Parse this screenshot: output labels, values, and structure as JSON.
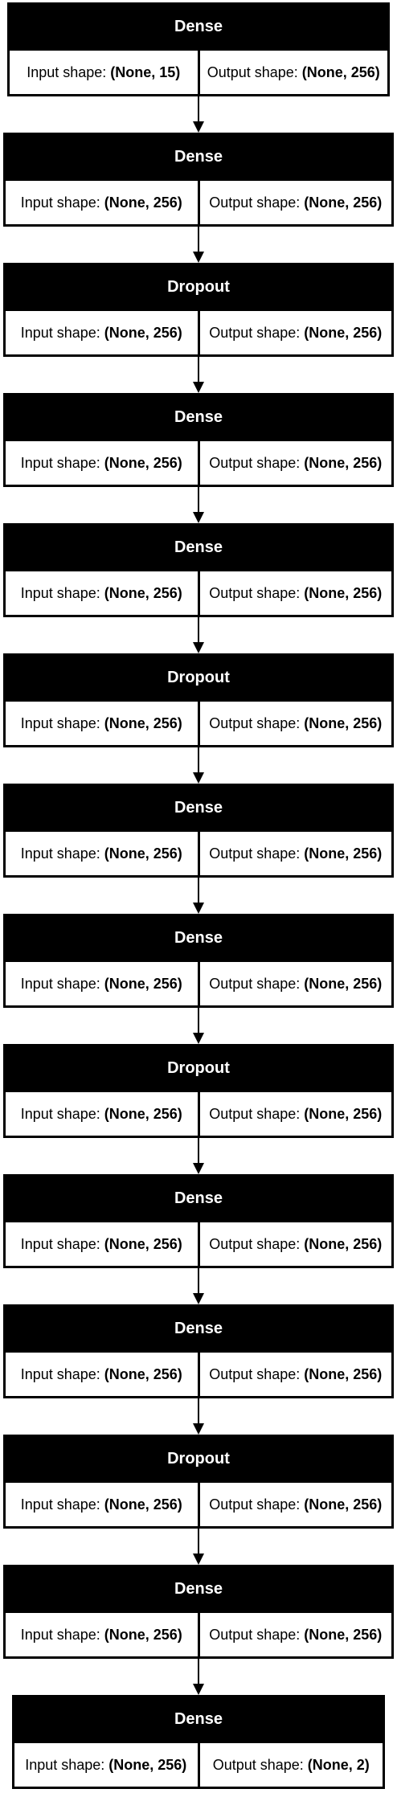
{
  "labels": {
    "input_prefix": "Input shape:",
    "output_prefix": "Output shape:"
  },
  "layers": [
    {
      "name": "Dense",
      "input_shape": "(None, 15)",
      "output_shape": "(None, 256)"
    },
    {
      "name": "Dense",
      "input_shape": "(None, 256)",
      "output_shape": "(None, 256)"
    },
    {
      "name": "Dropout",
      "input_shape": "(None, 256)",
      "output_shape": "(None, 256)"
    },
    {
      "name": "Dense",
      "input_shape": "(None, 256)",
      "output_shape": "(None, 256)"
    },
    {
      "name": "Dense",
      "input_shape": "(None, 256)",
      "output_shape": "(None, 256)"
    },
    {
      "name": "Dropout",
      "input_shape": "(None, 256)",
      "output_shape": "(None, 256)"
    },
    {
      "name": "Dense",
      "input_shape": "(None, 256)",
      "output_shape": "(None, 256)"
    },
    {
      "name": "Dense",
      "input_shape": "(None, 256)",
      "output_shape": "(None, 256)"
    },
    {
      "name": "Dropout",
      "input_shape": "(None, 256)",
      "output_shape": "(None, 256)"
    },
    {
      "name": "Dense",
      "input_shape": "(None, 256)",
      "output_shape": "(None, 256)"
    },
    {
      "name": "Dense",
      "input_shape": "(None, 256)",
      "output_shape": "(None, 256)"
    },
    {
      "name": "Dropout",
      "input_shape": "(None, 256)",
      "output_shape": "(None, 256)"
    },
    {
      "name": "Dense",
      "input_shape": "(None, 256)",
      "output_shape": "(None, 256)"
    },
    {
      "name": "Dense",
      "input_shape": "(None, 256)",
      "output_shape": "(None, 2)"
    }
  ]
}
